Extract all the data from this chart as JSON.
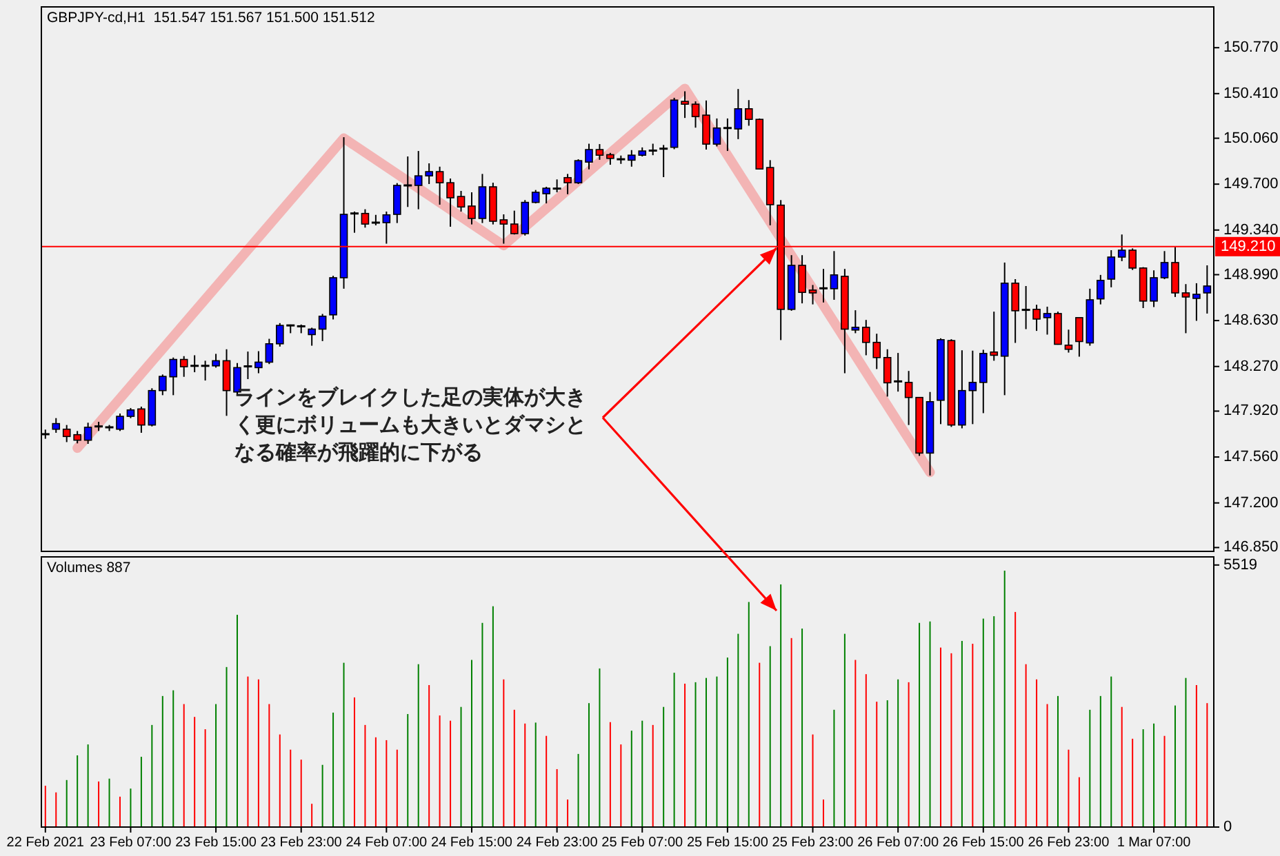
{
  "chart_data": [
    {
      "type": "candlestick",
      "title": "GBPJPY-cd,H1  151.547 151.567 151.500 151.512",
      "tick_labels": "y",
      "categories": [
        null,
        null,
        null,
        null,
        null,
        null,
        null,
        null,
        null,
        null,
        null,
        null,
        null,
        null,
        null,
        null,
        null,
        null,
        null,
        null,
        null,
        null,
        null,
        null,
        null,
        null,
        null,
        null,
        null,
        null,
        null,
        null,
        null,
        null,
        null,
        null,
        null,
        null,
        null,
        null,
        null,
        null,
        null,
        null,
        null,
        null,
        null,
        null,
        null,
        null,
        null,
        null,
        null,
        null,
        null,
        null,
        null,
        null,
        null,
        null,
        null,
        null,
        null,
        null,
        null,
        null,
        null,
        null,
        null,
        null,
        null,
        null,
        null,
        null,
        null,
        null,
        null,
        null,
        null,
        null,
        null,
        null,
        null,
        null,
        null,
        null,
        null,
        null,
        null,
        null,
        null,
        null,
        null,
        null,
        null,
        null,
        null,
        null,
        null,
        null,
        null,
        null,
        null,
        null,
        null,
        null,
        null,
        null,
        null,
        null
      ],
      "ylim": [
        146.82,
        151.09
      ],
      "yticks": [
        {
          "value": 146.85,
          "label": "146.850"
        },
        {
          "value": 147.2,
          "label": "147.200"
        },
        {
          "value": 147.56,
          "label": "147.560"
        },
        {
          "value": 147.92,
          "label": "147.920"
        },
        {
          "value": 148.27,
          "label": "148.270"
        },
        {
          "value": 148.63,
          "label": "148.630"
        },
        {
          "value": 148.99,
          "label": "148.990"
        },
        {
          "value": 149.34,
          "label": "149.340"
        },
        {
          "value": 149.7,
          "label": "149.700"
        },
        {
          "value": 150.06,
          "label": "150.060"
        },
        {
          "value": 150.41,
          "label": "150.410"
        },
        {
          "value": 150.77,
          "label": "150.770"
        }
      ],
      "ref_lines": [
        {
          "axis": "y",
          "value": 149.21,
          "label": "149.210",
          "color": "#ff0000"
        }
      ],
      "annotations": [
        "ラインをブレイクした足の実体が大きく更にボリュームも大きいとダマシとなる確率が飛躍的に下がる"
      ],
      "ohlc": [
        [
          147.739,
          147.775,
          147.703,
          147.739
        ],
        [
          147.778,
          147.865,
          147.75,
          147.822
        ],
        [
          147.778,
          147.811,
          147.677,
          147.721
        ],
        [
          147.735,
          147.764,
          147.667,
          147.692
        ],
        [
          147.692,
          147.829,
          147.663,
          147.793
        ],
        [
          147.8,
          147.836,
          147.764,
          147.8
        ],
        [
          147.793,
          147.811,
          147.764,
          147.793
        ],
        [
          147.778,
          147.901,
          147.764,
          147.879
        ],
        [
          147.879,
          147.944,
          147.865,
          147.929
        ],
        [
          147.937,
          147.955,
          147.75,
          147.811
        ],
        [
          147.811,
          148.099,
          147.8,
          148.081
        ],
        [
          148.081,
          148.207,
          148.045,
          148.192
        ],
        [
          148.189,
          148.34,
          148.045,
          148.325
        ],
        [
          148.325,
          148.351,
          148.189,
          148.268
        ],
        [
          148.275,
          148.358,
          148.225,
          148.275
        ],
        [
          148.275,
          148.315,
          148.16,
          148.275
        ],
        [
          148.275,
          148.369,
          148.261,
          148.315
        ],
        [
          148.315,
          148.405,
          147.883,
          148.081
        ],
        [
          148.07,
          148.297,
          148.045,
          148.261
        ],
        [
          148.271,
          148.387,
          148.171,
          148.271
        ],
        [
          148.261,
          148.39,
          148.217,
          148.304
        ],
        [
          148.304,
          148.487,
          148.289,
          148.448
        ],
        [
          148.448,
          148.61,
          148.426,
          148.592
        ],
        [
          148.592,
          148.599,
          148.531,
          148.592
        ],
        [
          148.585,
          148.599,
          148.531,
          148.585
        ],
        [
          148.52,
          148.574,
          148.433,
          148.563
        ],
        [
          148.563,
          148.682,
          148.469,
          148.664
        ],
        [
          148.675,
          148.981,
          148.639,
          148.966
        ],
        [
          148.966,
          150.068,
          148.88,
          149.463
        ],
        [
          149.47,
          149.485,
          149.319,
          149.47
        ],
        [
          149.47,
          149.503,
          149.359,
          149.387
        ],
        [
          149.398,
          149.459,
          149.377,
          149.398
        ],
        [
          149.398,
          149.485,
          149.233,
          149.459
        ],
        [
          149.463,
          149.708,
          149.395,
          149.69
        ],
        [
          149.69,
          149.917,
          149.521,
          149.69
        ],
        [
          149.69,
          149.96,
          149.503,
          149.765
        ],
        [
          149.765,
          149.863,
          149.701,
          149.798
        ],
        [
          149.798,
          149.837,
          149.539,
          149.711
        ],
        [
          149.711,
          149.744,
          149.366,
          149.593
        ],
        [
          149.603,
          149.647,
          149.485,
          149.521
        ],
        [
          149.528,
          149.636,
          149.384,
          149.431
        ],
        [
          149.431,
          149.78,
          149.395,
          149.679
        ],
        [
          149.679,
          149.711,
          149.384,
          149.409
        ],
        [
          149.42,
          149.463,
          149.233,
          149.387
        ],
        [
          149.387,
          149.492,
          149.305,
          149.312
        ],
        [
          149.312,
          149.575,
          149.297,
          149.557
        ],
        [
          149.557,
          149.654,
          149.549,
          149.636
        ],
        [
          149.625,
          149.679,
          149.549,
          149.668
        ],
        [
          149.665,
          149.737,
          149.636,
          149.665
        ],
        [
          149.751,
          149.78,
          149.621,
          149.711
        ],
        [
          149.711,
          149.895,
          149.701,
          149.884
        ],
        [
          149.873,
          150.017,
          149.816,
          149.971
        ],
        [
          149.971,
          150.014,
          149.891,
          149.927
        ],
        [
          149.931,
          149.945,
          149.852,
          149.902
        ],
        [
          149.895,
          149.924,
          149.859,
          149.895
        ],
        [
          149.888,
          149.967,
          149.837,
          149.927
        ],
        [
          149.927,
          149.988,
          149.917,
          149.96
        ],
        [
          149.963,
          150.017,
          149.927,
          149.963
        ],
        [
          149.978,
          150.007,
          149.755,
          149.978
        ],
        [
          149.989,
          150.377,
          149.974,
          150.359
        ],
        [
          150.349,
          150.428,
          150.219,
          150.327
        ],
        [
          150.327,
          150.349,
          150.143,
          150.23
        ],
        [
          150.241,
          150.356,
          149.971,
          150.014
        ],
        [
          150.014,
          150.215,
          149.996,
          150.14
        ],
        [
          150.14,
          150.215,
          149.96,
          150.14
        ],
        [
          150.133,
          150.446,
          150.053,
          150.291
        ],
        [
          150.291,
          150.359,
          150.158,
          150.208
        ],
        [
          150.208,
          150.215,
          149.816,
          149.819
        ],
        [
          149.83,
          149.888,
          149.377,
          149.539
        ],
        [
          149.535,
          149.575,
          148.477,
          148.718
        ],
        [
          148.718,
          149.143,
          148.707,
          149.063
        ],
        [
          149.063,
          149.143,
          148.765,
          148.851
        ],
        [
          148.869,
          148.909,
          148.757,
          148.847
        ],
        [
          148.883,
          149.035,
          148.772,
          148.883
        ],
        [
          148.88,
          149.175,
          148.793,
          148.988
        ],
        [
          148.977,
          149.035,
          148.217,
          148.563
        ],
        [
          148.556,
          148.711,
          148.531,
          148.577
        ],
        [
          148.577,
          148.635,
          148.358,
          148.459
        ],
        [
          148.459,
          148.527,
          148.25,
          148.34
        ],
        [
          148.34,
          148.405,
          148.034,
          148.142
        ],
        [
          148.153,
          148.376,
          148.073,
          148.153
        ],
        [
          148.145,
          148.235,
          147.811,
          148.027
        ],
        [
          148.027,
          148.027,
          147.569,
          147.591
        ],
        [
          147.591,
          148.07,
          147.415,
          147.994
        ],
        [
          148.005,
          148.491,
          147.818,
          148.48
        ],
        [
          148.473,
          148.484,
          147.796,
          147.811
        ],
        [
          147.811,
          148.397,
          147.785,
          148.081
        ],
        [
          148.081,
          148.394,
          147.818,
          148.145
        ],
        [
          148.145,
          148.401,
          147.904,
          148.372
        ],
        [
          148.383,
          148.7,
          148.315,
          148.358
        ],
        [
          148.351,
          149.085,
          148.045,
          148.923
        ],
        [
          148.923,
          148.955,
          148.455,
          148.707
        ],
        [
          148.714,
          148.901,
          148.563,
          148.714
        ],
        [
          148.718,
          148.754,
          148.549,
          148.642
        ],
        [
          148.653,
          148.739,
          148.52,
          148.685
        ],
        [
          148.685,
          148.7,
          148.441,
          148.444
        ],
        [
          148.437,
          148.559,
          148.379,
          148.405
        ],
        [
          148.653,
          148.653,
          148.347,
          148.466
        ],
        [
          148.455,
          148.88,
          148.433,
          148.793
        ],
        [
          148.8,
          148.988,
          148.757,
          148.945
        ],
        [
          148.955,
          149.182,
          148.891,
          149.128
        ],
        [
          149.128,
          149.305,
          149.096,
          149.182
        ],
        [
          149.182,
          149.196,
          149.027,
          149.042
        ],
        [
          149.042,
          149.049,
          148.728,
          148.783
        ],
        [
          148.783,
          149.024,
          148.736,
          148.966
        ],
        [
          148.966,
          149.175,
          148.955,
          149.085
        ],
        [
          149.085,
          149.207,
          148.815,
          148.847
        ],
        [
          148.847,
          148.916,
          148.531,
          148.815
        ],
        [
          148.804,
          148.923,
          148.628,
          148.836
        ],
        [
          148.847,
          149.063,
          148.685,
          148.901
        ]
      ],
      "colors": [
        "#000000",
        "#0000ff",
        "#ff0000",
        "#ff0000",
        "#0000ff",
        "#000000",
        "#000000",
        "#0000ff",
        "#0000ff",
        "#ff0000",
        "#0000ff",
        "#0000ff",
        "#0000ff",
        "#ff0000",
        "#000000",
        "#000000",
        "#0000ff",
        "#ff0000",
        "#0000ff",
        "#000000",
        "#0000ff",
        "#0000ff",
        "#0000ff",
        "#000000",
        "#000000",
        "#0000ff",
        "#0000ff",
        "#0000ff",
        "#0000ff",
        "#000000",
        "#ff0000",
        "#000000",
        "#0000ff",
        "#0000ff",
        "#000000",
        "#0000ff",
        "#0000ff",
        "#ff0000",
        "#ff0000",
        "#ff0000",
        "#ff0000",
        "#0000ff",
        "#ff0000",
        "#ff0000",
        "#ff0000",
        "#0000ff",
        "#0000ff",
        "#0000ff",
        "#000000",
        "#ff0000",
        "#0000ff",
        "#0000ff",
        "#ff0000",
        "#ff0000",
        "#000000",
        "#0000ff",
        "#0000ff",
        "#000000",
        "#000000",
        "#0000ff",
        "#ff0000",
        "#ff0000",
        "#ff0000",
        "#0000ff",
        "#000000",
        "#0000ff",
        "#ff0000",
        "#ff0000",
        "#ff0000",
        "#ff0000",
        "#0000ff",
        "#ff0000",
        "#ff0000",
        "#000000",
        "#0000ff",
        "#ff0000",
        "#0000ff",
        "#ff0000",
        "#ff0000",
        "#ff0000",
        "#000000",
        "#ff0000",
        "#ff0000",
        "#0000ff",
        "#0000ff",
        "#ff0000",
        "#0000ff",
        "#0000ff",
        "#0000ff",
        "#ff0000",
        "#0000ff",
        "#ff0000",
        "#000000",
        "#ff0000",
        "#0000ff",
        "#ff0000",
        "#ff0000",
        "#ff0000",
        "#0000ff",
        "#0000ff",
        "#0000ff",
        "#0000ff",
        "#ff0000",
        "#ff0000",
        "#0000ff",
        "#0000ff",
        "#ff0000",
        "#ff0000",
        "#0000ff",
        "#0000ff"
      ],
      "series": [
        {
          "type": "line",
          "color": "#f4a0a0",
          "values": [
            null,
            null,
            null,
            147.63,
            null,
            null,
            null,
            null,
            null,
            null,
            null,
            null,
            null,
            null,
            null,
            null,
            null,
            null,
            null,
            null,
            null,
            null,
            null,
            null,
            null,
            null,
            null,
            null,
            150.06,
            null,
            null,
            null,
            null,
            null,
            null,
            null,
            null,
            null,
            null,
            null,
            null,
            null,
            null,
            149.22,
            null,
            null,
            null,
            null,
            null,
            null,
            null,
            null,
            null,
            null,
            null,
            null,
            null,
            null,
            null,
            null,
            150.45,
            null,
            null,
            null,
            null,
            null,
            null,
            null,
            null,
            null,
            null,
            null,
            null,
            null,
            null,
            null,
            null,
            null,
            null,
            null,
            null,
            null,
            null,
            147.44,
            null,
            null,
            null,
            null,
            null,
            null,
            null,
            null,
            null,
            null,
            null,
            null,
            null,
            null,
            null,
            null,
            null,
            null,
            null,
            null,
            null,
            null,
            null,
            null,
            null,
            null
          ]
        }
      ]
    },
    {
      "type": "bar",
      "title": "Volumes 887",
      "categories": [
        "22 Feb 2021",
        null,
        null,
        null,
        null,
        null,
        null,
        null,
        "23 Feb 07:00",
        null,
        null,
        null,
        null,
        null,
        null,
        null,
        "23 Feb 15:00",
        null,
        null,
        null,
        null,
        null,
        null,
        null,
        "23 Feb 23:00",
        null,
        null,
        null,
        null,
        null,
        null,
        null,
        "24 Feb 07:00",
        null,
        null,
        null,
        null,
        null,
        null,
        null,
        "24 Feb 15:00",
        null,
        null,
        null,
        null,
        null,
        null,
        null,
        "24 Feb 23:00",
        null,
        null,
        null,
        null,
        null,
        null,
        null,
        "25 Feb 07:00",
        null,
        null,
        null,
        null,
        null,
        null,
        null,
        "25 Feb 15:00",
        null,
        null,
        null,
        null,
        null,
        null,
        null,
        "25 Feb 23:00",
        null,
        null,
        null,
        null,
        null,
        null,
        null,
        "26 Feb 07:00",
        null,
        null,
        null,
        null,
        null,
        null,
        null,
        "26 Feb 15:00",
        null,
        null,
        null,
        null,
        null,
        null,
        null,
        "26 Feb 23:00",
        null,
        null,
        null,
        null,
        null,
        null,
        null,
        "1 Mar 07:00",
        null,
        null,
        null,
        null,
        null
      ],
      "ylim": [
        0,
        5690
      ],
      "yticks": [
        0,
        5519
      ],
      "values": [
        870,
        730,
        990,
        1510,
        1740,
        960,
        1020,
        640,
        810,
        1480,
        2150,
        2760,
        2880,
        2590,
        2320,
        2060,
        2590,
        3370,
        4470,
        3170,
        3110,
        2590,
        1950,
        1630,
        1420,
        490,
        1310,
        2410,
        3460,
        2730,
        2150,
        1890,
        1830,
        1630,
        2380,
        3430,
        2990,
        2350,
        2240,
        2530,
        3520,
        4300,
        4650,
        3110,
        2470,
        2180,
        2200,
        1920,
        1220,
        580,
        1540,
        2610,
        3340,
        2210,
        1740,
        2030,
        2240,
        2150,
        2530,
        3250,
        3020,
        3050,
        3140,
        3170,
        3570,
        4070,
        4740,
        3460,
        3810,
        5110,
        3980,
        4180,
        1950,
        580,
        2470,
        4070,
        3520,
        3220,
        2640,
        2670,
        3110,
        3050,
        4300,
        4330,
        3780,
        3660,
        3920,
        3860,
        4390,
        4440,
        5400,
        4530,
        3430,
        3110,
        2590,
        2760,
        1630,
        1050,
        2470,
        2760,
        3170,
        2530,
        1860,
        2060,
        2180,
        1920,
        2560,
        3140,
        2990,
        2610
      ],
      "colors": [
        "#ff0000",
        "#ff0000",
        "#008000",
        "#008000",
        "#008000",
        "#ff0000",
        "#008000",
        "#ff0000",
        "#008000",
        "#008000",
        "#008000",
        "#008000",
        "#008000",
        "#ff0000",
        "#ff0000",
        "#ff0000",
        "#008000",
        "#008000",
        "#008000",
        "#ff0000",
        "#ff0000",
        "#ff0000",
        "#ff0000",
        "#ff0000",
        "#ff0000",
        "#ff0000",
        "#008000",
        "#008000",
        "#008000",
        "#ff0000",
        "#ff0000",
        "#ff0000",
        "#ff0000",
        "#ff0000",
        "#008000",
        "#008000",
        "#ff0000",
        "#ff0000",
        "#ff0000",
        "#008000",
        "#008000",
        "#008000",
        "#008000",
        "#ff0000",
        "#ff0000",
        "#ff0000",
        "#008000",
        "#ff0000",
        "#ff0000",
        "#ff0000",
        "#008000",
        "#008000",
        "#008000",
        "#ff0000",
        "#ff0000",
        "#008000",
        "#008000",
        "#ff0000",
        "#008000",
        "#008000",
        "#ff0000",
        "#008000",
        "#008000",
        "#008000",
        "#008000",
        "#008000",
        "#008000",
        "#ff0000",
        "#008000",
        "#008000",
        "#ff0000",
        "#008000",
        "#ff0000",
        "#ff0000",
        "#008000",
        "#008000",
        "#ff0000",
        "#ff0000",
        "#ff0000",
        "#008000",
        "#008000",
        "#ff0000",
        "#008000",
        "#008000",
        "#ff0000",
        "#ff0000",
        "#008000",
        "#ff0000",
        "#008000",
        "#008000",
        "#008000",
        "#ff0000",
        "#ff0000",
        "#ff0000",
        "#ff0000",
        "#008000",
        "#ff0000",
        "#ff0000",
        "#008000",
        "#008000",
        "#008000",
        "#ff0000",
        "#ff0000",
        "#008000",
        "#008000",
        "#ff0000",
        "#008000",
        "#008000",
        "#ff0000",
        "#ff0000"
      ]
    }
  ]
}
